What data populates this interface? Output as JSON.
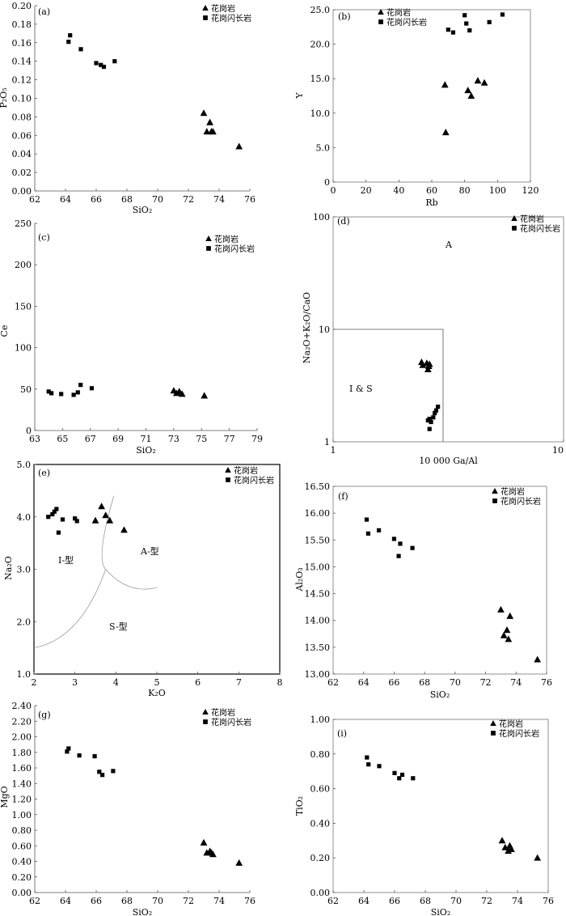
{
  "chart_data": [
    {
      "type": "scatter",
      "panel_label": "(a)",
      "xlabel": "SiO₂",
      "ylabel": "P₂O₅",
      "xlim": [
        62,
        76
      ],
      "ylim": [
        0,
        0.2
      ],
      "xticks": [
        "62",
        "64",
        "66",
        "68",
        "70",
        "72",
        "74",
        "76"
      ],
      "yticks": [
        "0.00",
        "0.02",
        "0.04",
        "0.06",
        "0.08",
        "0.10",
        "0.12",
        "0.14",
        "0.16",
        "0.18",
        "0.20"
      ],
      "legend_position": "top-right",
      "series": [
        {
          "name": "花岗岩",
          "marker": "triangle",
          "x": [
            73.0,
            73.2,
            73.4,
            73.5,
            73.6,
            75.3
          ],
          "y": [
            0.084,
            0.064,
            0.074,
            0.064,
            0.064,
            0.048
          ]
        },
        {
          "name": "花岗闪长岩",
          "marker": "square",
          "x": [
            64.2,
            64.3,
            65.0,
            66.0,
            66.3,
            66.5,
            67.2
          ],
          "y": [
            0.161,
            0.168,
            0.153,
            0.138,
            0.136,
            0.134,
            0.14
          ]
        }
      ]
    },
    {
      "type": "scatter",
      "panel_label": "(b)",
      "xlabel": "Rb",
      "ylabel": "Y",
      "xlim": [
        0,
        120
      ],
      "ylim": [
        0,
        25.0
      ],
      "xticks": [
        "0",
        "20",
        "40",
        "60",
        "80",
        "100",
        "120"
      ],
      "yticks": [
        "0",
        "5.0",
        "10.0",
        "15.0",
        "20.0",
        "25.0"
      ],
      "legend_position": "top-left",
      "series": [
        {
          "name": "花岗岩",
          "marker": "triangle",
          "x": [
            68,
            68.5,
            82,
            84,
            88,
            92
          ],
          "y": [
            14.1,
            7.2,
            13.3,
            12.5,
            14.7,
            14.4
          ]
        },
        {
          "name": "花岗闪长岩",
          "marker": "square",
          "x": [
            70,
            73,
            80,
            81,
            83,
            95,
            103
          ],
          "y": [
            22.1,
            21.7,
            24.2,
            23.0,
            22.0,
            23.2,
            24.3
          ]
        }
      ]
    },
    {
      "type": "scatter",
      "panel_label": "(c)",
      "xlabel": "SiO₂",
      "ylabel": "Ce",
      "xlim": [
        63,
        79
      ],
      "ylim": [
        0,
        250
      ],
      "xticks": [
        "63",
        "65",
        "67",
        "69",
        "71",
        "73",
        "75",
        "77",
        "79"
      ],
      "yticks": [
        "0",
        "50",
        "100",
        "150",
        "200",
        "250"
      ],
      "legend_position": "top-right",
      "series": [
        {
          "name": "花岗岩",
          "marker": "triangle",
          "x": [
            73.0,
            73.2,
            73.4,
            73.6,
            75.2
          ],
          "y": [
            48,
            45,
            47,
            44,
            42
          ]
        },
        {
          "name": "花岗闪长岩",
          "marker": "square",
          "x": [
            64.0,
            64.2,
            64.9,
            65.8,
            66.1,
            66.3,
            67.1
          ],
          "y": [
            47,
            45,
            44,
            43,
            46,
            55,
            51
          ]
        }
      ]
    },
    {
      "type": "scatter",
      "panel_label": "(d)",
      "xlabel": "10 000 Ga/Al",
      "ylabel": "Na₂O+K₂O/CaO",
      "xscale": "log",
      "yscale": "log",
      "xlim": [
        1,
        10
      ],
      "ylim": [
        1,
        100
      ],
      "xticks": [
        "1",
        "10"
      ],
      "yticks": [
        "1",
        "10",
        "100"
      ],
      "legend_position": "top-right",
      "regions": [
        {
          "label": "A"
        },
        {
          "label": "I & S"
        }
      ],
      "series": [
        {
          "name": "花岗岩",
          "marker": "triangle",
          "x": [
            2.42,
            2.45,
            2.55,
            2.6,
            2.62,
            2.58
          ],
          "y": [
            5.1,
            4.8,
            5.0,
            4.7,
            4.9,
            4.4
          ]
        },
        {
          "name": "花岗闪长岩",
          "marker": "square",
          "x": [
            2.58,
            2.62,
            2.66,
            2.72,
            2.76,
            2.8,
            2.85,
            2.62
          ],
          "y": [
            1.55,
            1.6,
            1.5,
            1.65,
            1.8,
            1.9,
            2.05,
            1.3
          ]
        }
      ]
    },
    {
      "type": "scatter",
      "panel_label": "(e)",
      "xlabel": "K₂O",
      "ylabel": "Na₂O",
      "xlim": [
        2,
        8
      ],
      "ylim": [
        1.0,
        5.0
      ],
      "xticks": [
        "2",
        "3",
        "4",
        "5",
        "6",
        "7",
        "8"
      ],
      "yticks": [
        "1.0",
        "2.0",
        "3.0",
        "4.0",
        "5.0"
      ],
      "legend_position": "top-right",
      "regions": [
        {
          "label": "I-型"
        },
        {
          "label": "A-型"
        },
        {
          "label": "S-型"
        }
      ],
      "series": [
        {
          "name": "花岗岩",
          "marker": "triangle",
          "x": [
            3.5,
            3.65,
            3.75,
            3.85,
            4.2
          ],
          "y": [
            3.93,
            4.2,
            4.03,
            3.93,
            3.75
          ]
        },
        {
          "name": "花岗闪长岩",
          "marker": "square",
          "x": [
            2.35,
            2.45,
            2.5,
            2.55,
            2.6,
            2.7,
            3.0,
            3.05
          ],
          "y": [
            4.0,
            4.05,
            4.1,
            4.15,
            3.7,
            3.95,
            3.97,
            3.92
          ]
        }
      ]
    },
    {
      "type": "scatter",
      "panel_label": "(f)",
      "xlabel": "SiO₂",
      "ylabel": "Al₂O₃",
      "xlim": [
        62,
        76
      ],
      "ylim": [
        13.0,
        16.5
      ],
      "xticks": [
        "62",
        "64",
        "66",
        "68",
        "70",
        "72",
        "74",
        "76"
      ],
      "yticks": [
        "13.00",
        "13.50",
        "14.00",
        "14.50",
        "15.00",
        "15.50",
        "16.00",
        "16.50"
      ],
      "legend_position": "top-right",
      "series": [
        {
          "name": "花岗岩",
          "marker": "triangle",
          "x": [
            73.0,
            73.2,
            73.4,
            73.5,
            73.6,
            75.4
          ],
          "y": [
            14.2,
            13.72,
            13.82,
            13.65,
            14.08,
            13.27
          ]
        },
        {
          "name": "花岗闪长岩",
          "marker": "square",
          "x": [
            64.2,
            64.3,
            65.0,
            66.0,
            66.3,
            66.4,
            67.2
          ],
          "y": [
            15.88,
            15.62,
            15.68,
            15.52,
            15.2,
            15.43,
            15.35
          ]
        }
      ]
    },
    {
      "type": "scatter",
      "panel_label": "(g)",
      "xlabel": "SiO₂",
      "ylabel": "MgO",
      "xlim": [
        62,
        76
      ],
      "ylim": [
        0,
        2.4
      ],
      "xticks": [
        "62",
        "64",
        "66",
        "68",
        "70",
        "72",
        "74",
        "76"
      ],
      "yticks": [
        "0.00",
        "0.20",
        "0.40",
        "0.60",
        "0.80",
        "1.00",
        "1.20",
        "1.40",
        "1.60",
        "1.80",
        "2.00",
        "2.20",
        "2.40"
      ],
      "legend_position": "top-right",
      "series": [
        {
          "name": "花岗岩",
          "marker": "triangle",
          "x": [
            73.0,
            73.2,
            73.4,
            73.5,
            73.6,
            75.3
          ],
          "y": [
            0.64,
            0.51,
            0.53,
            0.51,
            0.49,
            0.38
          ]
        },
        {
          "name": "花岗闪长岩",
          "marker": "square",
          "x": [
            64.1,
            64.2,
            64.9,
            65.9,
            66.2,
            66.4,
            67.1
          ],
          "y": [
            1.81,
            1.85,
            1.76,
            1.75,
            1.55,
            1.51,
            1.56
          ]
        }
      ]
    },
    {
      "type": "scatter",
      "panel_label": "(i)",
      "xlabel": "SiO₂",
      "ylabel": "TiO₂",
      "xlim": [
        62,
        76
      ],
      "ylim": [
        0,
        1.0
      ],
      "xticks": [
        "62",
        "64",
        "66",
        "68",
        "70",
        "72",
        "74",
        "76"
      ],
      "yticks": [
        "0.00",
        "0.20",
        "0.40",
        "0.60",
        "0.80",
        "1.00"
      ],
      "legend_position": "top-right",
      "series": [
        {
          "name": "花岗岩",
          "marker": "triangle",
          "x": [
            73.0,
            73.2,
            73.4,
            73.5,
            73.6,
            75.3
          ],
          "y": [
            0.3,
            0.26,
            0.24,
            0.27,
            0.25,
            0.2
          ]
        },
        {
          "name": "花岗闪长岩",
          "marker": "square",
          "x": [
            64.2,
            64.3,
            65.0,
            66.0,
            66.3,
            66.5,
            67.2
          ],
          "y": [
            0.78,
            0.74,
            0.73,
            0.69,
            0.66,
            0.68,
            0.66
          ]
        }
      ]
    }
  ]
}
